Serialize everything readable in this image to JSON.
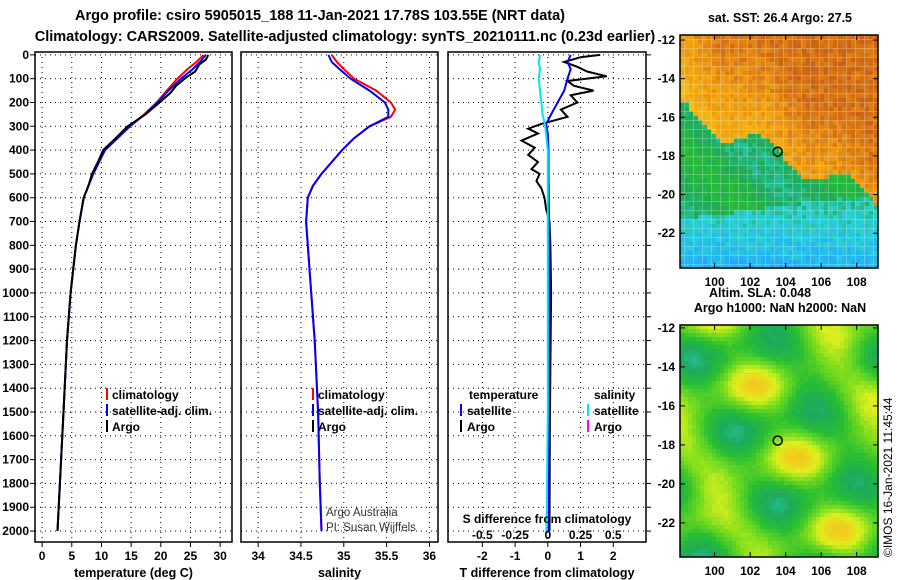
{
  "header": {
    "title_line1": "Argo profile: csiro 5905015_188 11-Jan-2021 17.78S 103.55E (NRT data)",
    "title_line2": "Climatology: CARS2009. Satellite-adjusted climatology: synTS_20210111.nc (0.23d earlier)"
  },
  "credit": "©IMOS 16-Jan-2021 11:45:44",
  "chart_data": [
    {
      "type": "line",
      "id": "temperature",
      "xlabel": "temperature (deg C)",
      "ylabel": "",
      "xlim": [
        -1.2,
        32
      ],
      "ylim": [
        -12,
        2046
      ],
      "y_reversed": true,
      "grid": true,
      "xticks": [
        0,
        5,
        10,
        15,
        20,
        25,
        30
      ],
      "xtick_labels": [
        "0",
        "5",
        "10",
        "15",
        "20",
        "25",
        "30"
      ],
      "yticks": [
        0,
        100,
        200,
        300,
        400,
        500,
        600,
        700,
        800,
        900,
        1000,
        1100,
        1200,
        1300,
        1400,
        1500,
        1600,
        1700,
        1800,
        1900,
        2000
      ],
      "ytick_labels": [
        "0",
        "100",
        "200",
        "300",
        "400",
        "500",
        "600",
        "700",
        "800",
        "900",
        "1000",
        "1100",
        "1200",
        "1300",
        "1400",
        "1500",
        "1600",
        "1700",
        "1800",
        "1900",
        "2000"
      ],
      "legend": [
        {
          "label": "climatology",
          "color": "#ff0000"
        },
        {
          "label": "satellite-adj. clim.",
          "color": "#0000ff"
        },
        {
          "label": "Argo",
          "color": "#000000"
        }
      ],
      "series": [
        {
          "name": "climatology",
          "color": "#ff0000",
          "depth": [
            0,
            30,
            60,
            100,
            150,
            200,
            250,
            300,
            400,
            500,
            600,
            700,
            800,
            1000,
            1200,
            1500,
            1800,
            2000
          ],
          "values": [
            27.2,
            26.0,
            24.5,
            22.8,
            21.0,
            19.3,
            17.2,
            14.8,
            10.6,
            8.6,
            7.0,
            6.3,
            5.7,
            4.8,
            4.2,
            3.6,
            3.0,
            2.6
          ]
        },
        {
          "name": "satellite-adj. clim.",
          "color": "#0000ff",
          "depth": [
            0,
            30,
            60,
            100,
            150,
            200,
            250,
            300,
            400,
            500,
            600,
            700,
            800,
            1000,
            1200,
            1500,
            1800,
            2000
          ],
          "values": [
            27.6,
            26.6,
            25.4,
            23.4,
            21.3,
            19.5,
            17.3,
            14.8,
            10.6,
            8.6,
            7.0,
            6.3,
            5.7,
            4.8,
            4.2,
            3.6,
            3.0,
            2.6
          ]
        },
        {
          "name": "Argo",
          "color": "#000000",
          "depth": [
            0,
            20,
            40,
            70,
            100,
            130,
            160,
            200,
            250,
            300,
            350,
            400,
            450,
            500,
            550,
            600,
            700,
            800,
            1000,
            1200,
            1500,
            1800,
            2000
          ],
          "values": [
            28.0,
            27.6,
            26.5,
            25.8,
            24.0,
            22.6,
            21.6,
            19.8,
            17.4,
            14.4,
            12.4,
            10.3,
            9.4,
            8.4,
            7.8,
            7.0,
            6.3,
            5.7,
            4.8,
            4.2,
            3.6,
            3.0,
            2.6
          ]
        }
      ]
    },
    {
      "type": "line",
      "id": "salinity",
      "xlabel": "salinity",
      "xlim": [
        33.8,
        36.1
      ],
      "ylim": [
        -12,
        2046
      ],
      "y_reversed": true,
      "grid": true,
      "xticks": [
        34,
        34.5,
        35,
        35.5,
        36
      ],
      "xtick_labels": [
        "34",
        "34.5",
        "35",
        "35.5",
        "36"
      ],
      "legend": [
        {
          "label": "climatology",
          "color": "#ff0000"
        },
        {
          "label": "satellite-adj. clim.",
          "color": "#0000ff"
        },
        {
          "label": "Argo",
          "color": "#000000"
        }
      ],
      "annotation": [
        "Argo Australia",
        "PI: Susan Wijffels"
      ],
      "series": [
        {
          "name": "climatology",
          "color": "#ff0000",
          "depth": [
            0,
            30,
            60,
            100,
            150,
            200,
            230,
            260,
            300,
            350,
            400,
            450,
            500,
            550,
            600,
            700,
            900,
            1200,
            1500,
            1800,
            2000
          ],
          "values": [
            34.86,
            34.92,
            35.0,
            35.12,
            35.38,
            35.55,
            35.6,
            35.55,
            35.3,
            35.12,
            34.98,
            34.86,
            34.74,
            34.64,
            34.58,
            34.56,
            34.6,
            34.66,
            34.7,
            34.72,
            34.74
          ]
        },
        {
          "name": "satellite-adj. clim.",
          "color": "#0000ff",
          "depth": [
            0,
            30,
            60,
            100,
            150,
            200,
            230,
            260,
            300,
            350,
            400,
            450,
            500,
            550,
            600,
            700,
            900,
            1200,
            1500,
            1800,
            2000
          ],
          "values": [
            34.82,
            34.86,
            34.95,
            35.08,
            35.3,
            35.48,
            35.52,
            35.52,
            35.3,
            35.12,
            34.98,
            34.86,
            34.74,
            34.64,
            34.58,
            34.56,
            34.6,
            34.66,
            34.7,
            34.72,
            34.74
          ]
        }
      ]
    },
    {
      "type": "line",
      "id": "difference",
      "xlabel": "T difference from climatology",
      "xlim": [
        -3.05,
        3.0
      ],
      "ylim": [
        -12,
        2046
      ],
      "y_reversed": true,
      "grid": true,
      "xticks": [
        -2,
        -1,
        0,
        1,
        2
      ],
      "xtick_labels": [
        "-2",
        "-1",
        "0",
        "1",
        "2"
      ],
      "secondary_xlabel": "S difference from climatology",
      "secondary_xticks": [
        -0.5,
        -0.25,
        0,
        0.25,
        0.5
      ],
      "secondary_xtick_labels": [
        "-0.5",
        "-0.25",
        "0",
        "0.25",
        "0.5"
      ],
      "secondary_scale": 4,
      "legend_temperature_title": "temperature",
      "legend_salinity_title": "salinity",
      "legend": [
        {
          "group": "temperature",
          "label": "satellite",
          "color": "#0000ff"
        },
        {
          "group": "temperature",
          "label": "Argo",
          "color": "#000000"
        },
        {
          "group": "salinity",
          "label": "satellite",
          "color": "#00e5ee"
        },
        {
          "group": "salinity",
          "label": "Argo",
          "color": "#ff00ff"
        }
      ],
      "series": [
        {
          "name": "T Argo",
          "color": "#000000",
          "depth": [
            0,
            10,
            30,
            50,
            70,
            90,
            110,
            130,
            150,
            170,
            200,
            230,
            260,
            290,
            310,
            330,
            360,
            390,
            420,
            450,
            480,
            500,
            530,
            560,
            600,
            650,
            700,
            800,
            1000,
            1300,
            1600,
            2000
          ],
          "values": [
            1.6,
            1.0,
            0.5,
            0.9,
            1.2,
            1.8,
            0.6,
            0.8,
            1.4,
            0.7,
            0.9,
            0.4,
            0.6,
            -0.2,
            -0.6,
            -0.3,
            -0.8,
            -0.4,
            -0.6,
            -0.3,
            -0.5,
            -0.25,
            -0.35,
            -0.2,
            -0.1,
            -0.05,
            0.05,
            0.08,
            0.1,
            0.08,
            0.06,
            0.05
          ]
        },
        {
          "name": "T satellite",
          "color": "#0000ff",
          "depth": [
            0,
            30,
            60,
            100,
            150,
            200,
            250,
            290,
            330,
            400,
            500,
            600,
            800,
            1000,
            1500,
            2000
          ],
          "values": [
            0.7,
            0.6,
            0.7,
            0.6,
            0.5,
            0.3,
            0.1,
            -0.05,
            0.0,
            0.02,
            0.02,
            0.03,
            0.05,
            0.05,
            0.04,
            0.03
          ]
        },
        {
          "name": "S satellite",
          "color": "#00e5ee",
          "depth": [
            0,
            30,
            60,
            100,
            150,
            200,
            250,
            300,
            350,
            400,
            600,
            1000,
            1500,
            2000
          ],
          "values": [
            -0.06,
            -0.07,
            -0.06,
            -0.07,
            -0.06,
            -0.05,
            -0.04,
            -0.02,
            -0.01,
            0.0,
            0.0,
            0.0,
            0.0,
            -0.01
          ],
          "scale": 4
        }
      ]
    },
    {
      "type": "heatmap",
      "id": "sst-map",
      "title": "sat. SST: 26.4 Argo: 27.5",
      "xlim": [
        98.05,
        109.2
      ],
      "ylim": [
        -23.8,
        -11.74
      ],
      "xticks": [
        100,
        102,
        104,
        106,
        108
      ],
      "xtick_labels": [
        "100",
        "102",
        "104",
        "106",
        "108"
      ],
      "yticks": [
        -12,
        -14,
        -16,
        -18,
        -20,
        -22
      ],
      "ytick_labels": [
        "-12",
        "-14",
        "-16",
        "-18",
        "-20",
        "-22"
      ],
      "footer": "Altim. SLA: 0.048",
      "marker": {
        "lon": 103.55,
        "lat": -17.78
      }
    },
    {
      "type": "heatmap",
      "id": "sla-map",
      "title": "Argo h1000: NaN h2000: NaN",
      "xlim": [
        98.05,
        109.2
      ],
      "ylim": [
        -23.75,
        -11.85
      ],
      "xticks": [
        100,
        102,
        104,
        106,
        108
      ],
      "xtick_labels": [
        "100",
        "102",
        "104",
        "106",
        "108"
      ],
      "yticks": [
        -12,
        -14,
        -16,
        -18,
        -20,
        -22
      ],
      "ytick_labels": [
        "-12",
        "-14",
        "-16",
        "-18",
        "-20",
        "-22"
      ],
      "marker": {
        "lon": 103.55,
        "lat": -17.78
      }
    }
  ]
}
